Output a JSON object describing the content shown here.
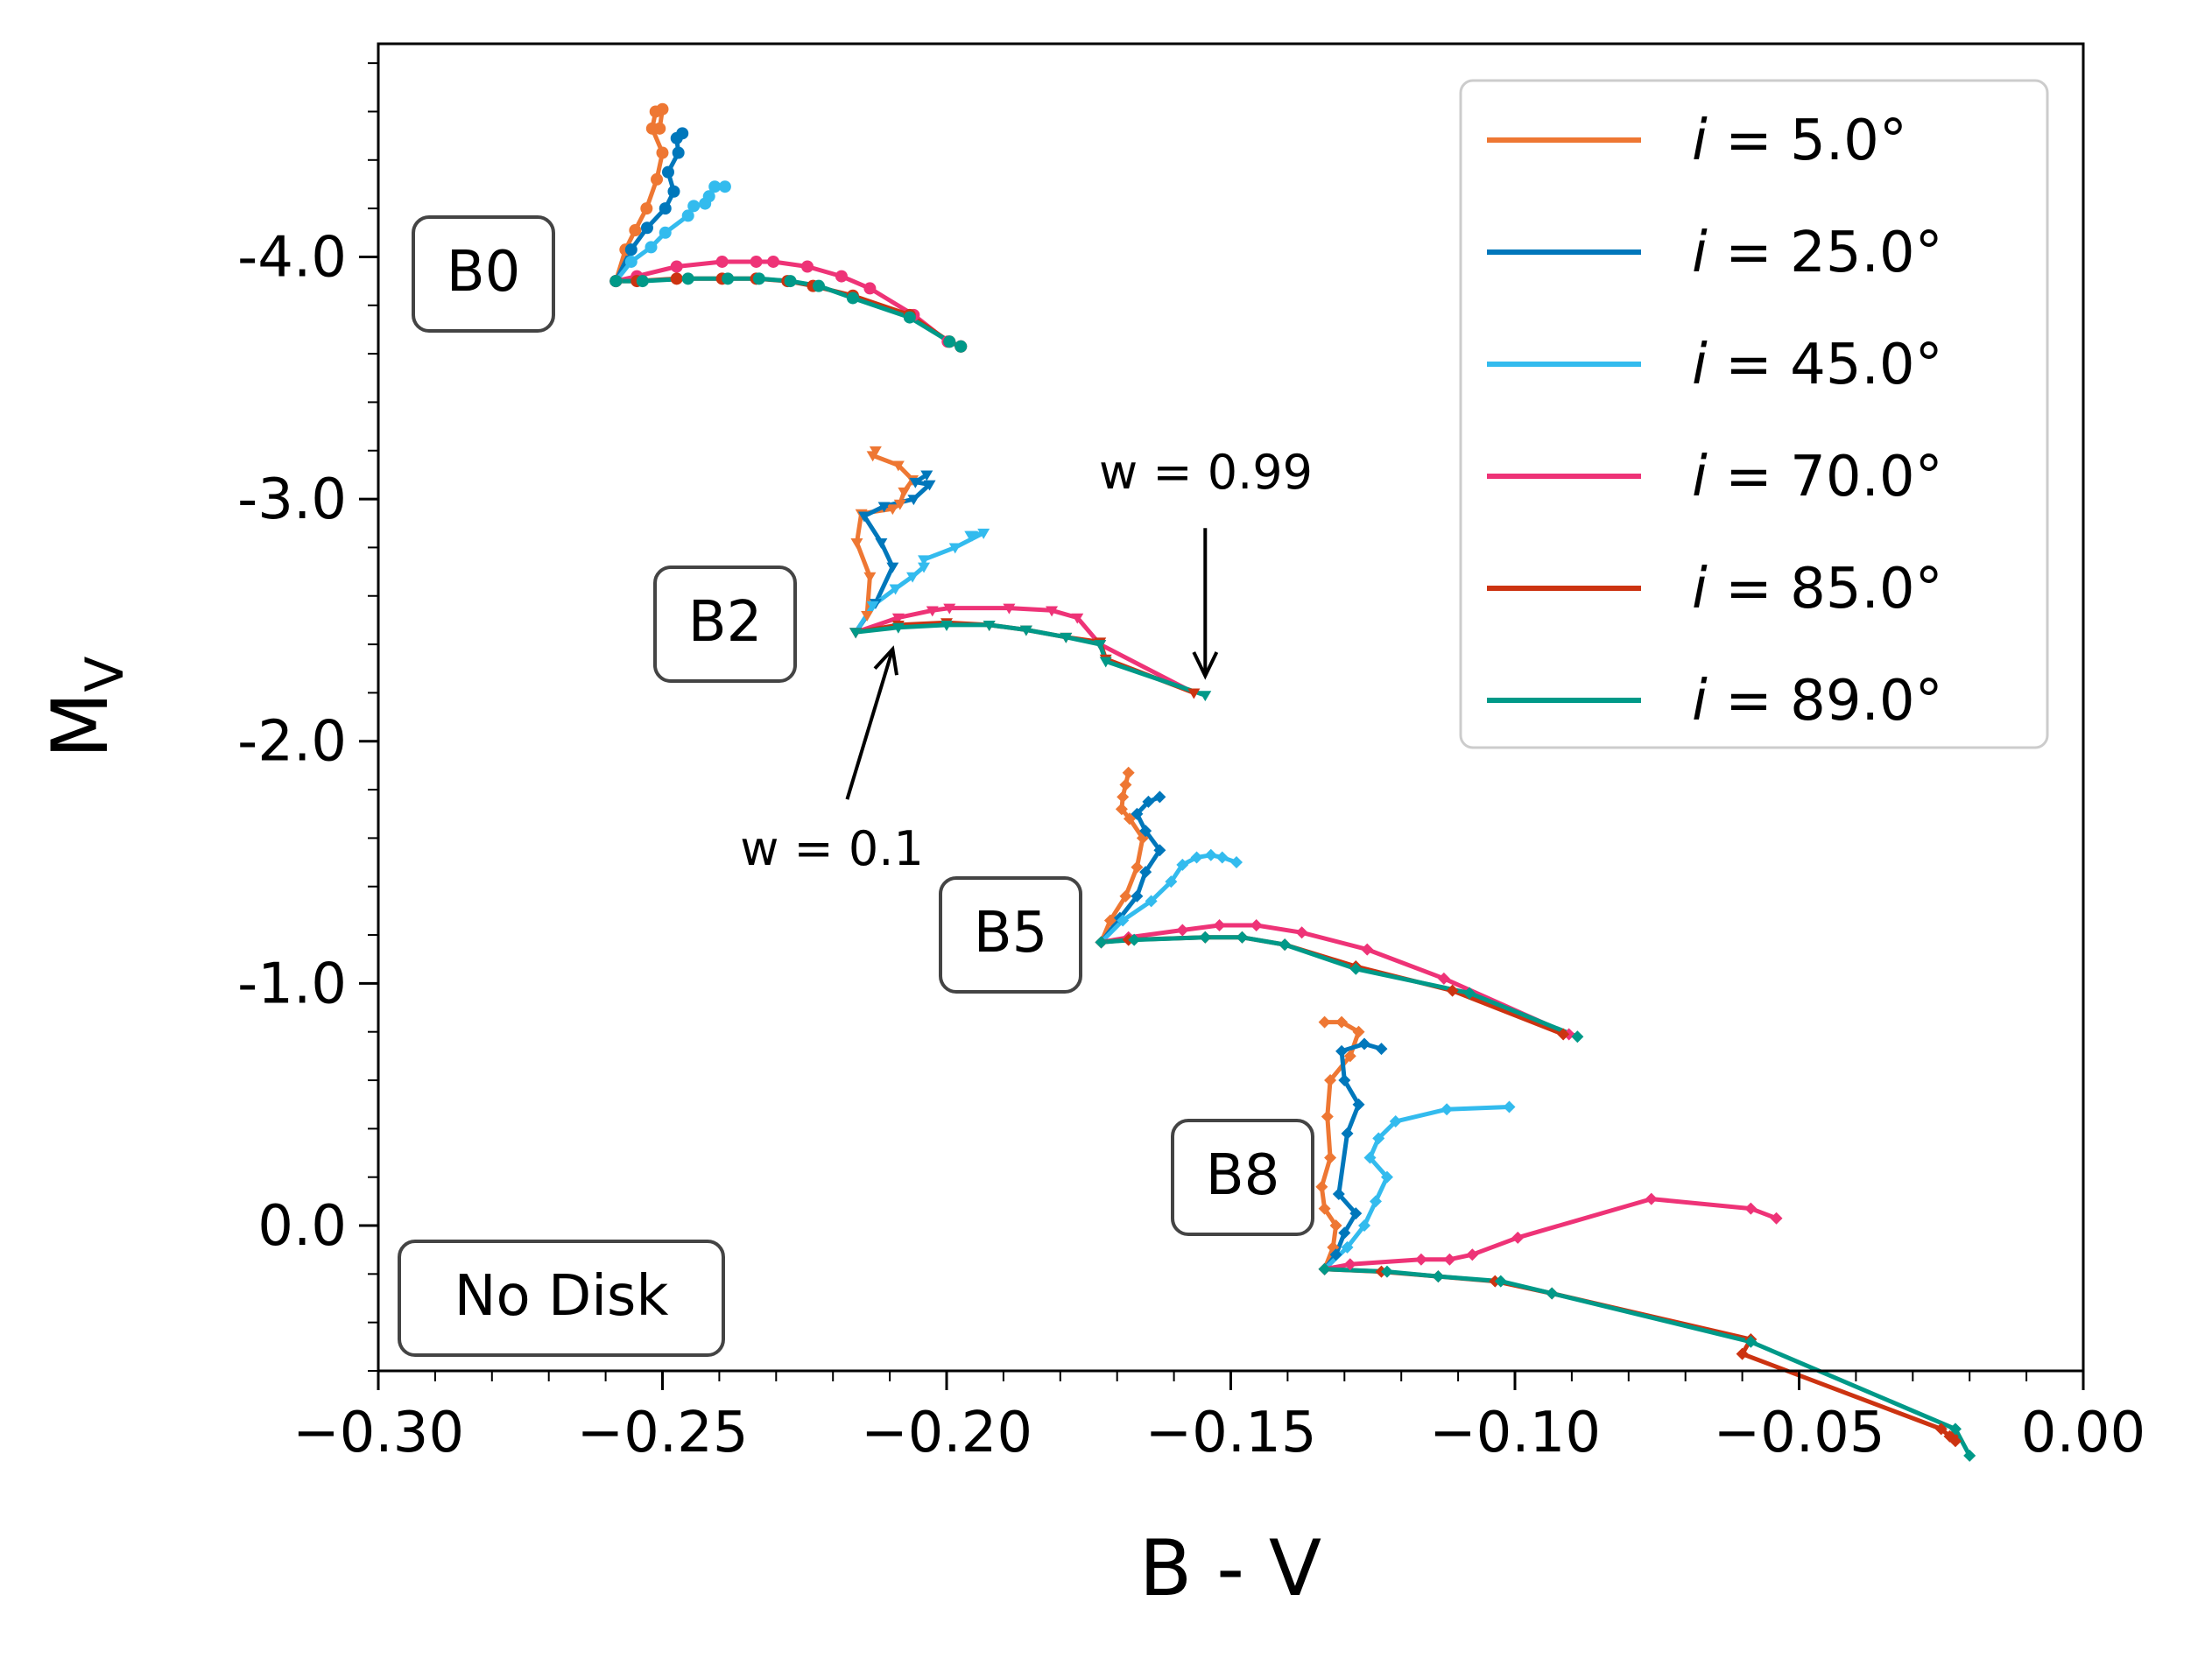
{
  "chart_data": {
    "type": "line",
    "title": "",
    "xlabel": "B - V",
    "ylabel_main": "M",
    "ylabel_sub": "V",
    "xlim": [
      -0.3,
      0.0
    ],
    "ylim": [
      0.6,
      -4.88
    ],
    "y_inverted": true,
    "xticks": [
      -0.3,
      -0.25,
      -0.2,
      -0.15,
      -0.1,
      -0.05,
      0.0
    ],
    "xtick_labels": [
      "−0.30",
      "−0.25",
      "−0.20",
      "−0.15",
      "−0.10",
      "−0.05",
      "0.00"
    ],
    "yticks": [
      -4.0,
      -3.0,
      -2.0,
      -1.0,
      0.0
    ],
    "ytick_labels": [
      "-4.0",
      "-3.0",
      "-2.0",
      "-1.0",
      "0.0"
    ],
    "legend_position": "top-right",
    "legend_prefix": "i",
    "series": [
      {
        "name": "5.0°",
        "color": "#EE7733"
      },
      {
        "name": "25.0°",
        "color": "#0077BB"
      },
      {
        "name": "45.0°",
        "color": "#33BBEE"
      },
      {
        "name": "70.0°",
        "color": "#EE3377"
      },
      {
        "name": "85.0°",
        "color": "#CC3311"
      },
      {
        "name": "89.0°",
        "color": "#009988"
      }
    ],
    "groups": [
      {
        "label": "B0",
        "marker": "circle",
        "tracks": [
          {
            "series": 0,
            "x": [
              -0.2582,
              -0.2565,
              -0.2548,
              -0.2528,
              -0.251,
              -0.25,
              -0.2518,
              -0.2512,
              -0.25,
              -0.2505
            ],
            "y": [
              -3.9,
              -4.03,
              -4.11,
              -4.2,
              -4.32,
              -4.43,
              -4.53,
              -4.6,
              -4.61,
              -4.53
            ]
          },
          {
            "series": 1,
            "x": [
              -0.2582,
              -0.2555,
              -0.2527,
              -0.2495,
              -0.248,
              -0.249,
              -0.2472,
              -0.2475,
              -0.2465
            ],
            "y": [
              -3.9,
              -4.03,
              -4.12,
              -4.2,
              -4.27,
              -4.35,
              -4.43,
              -4.49,
              -4.51
            ]
          },
          {
            "series": 2,
            "x": [
              -0.2582,
              -0.2555,
              -0.252,
              -0.2495,
              -0.2455,
              -0.2445,
              -0.2425,
              -0.2418,
              -0.2408,
              -0.239
            ],
            "y": [
              -3.9,
              -3.98,
              -4.04,
              -4.1,
              -4.17,
              -4.21,
              -4.22,
              -4.25,
              -4.29,
              -4.29
            ]
          },
          {
            "series": 3,
            "x": [
              -0.2582,
              -0.2545,
              -0.2475,
              -0.2395,
              -0.2335,
              -0.2305,
              -0.2245,
              -0.2185,
              -0.2135,
              -0.2058,
              -0.1998,
              -0.1975
            ],
            "y": [
              -3.9,
              -3.92,
              -3.96,
              -3.98,
              -3.98,
              -3.98,
              -3.96,
              -3.92,
              -3.87,
              -3.76,
              -3.65,
              -3.63
            ]
          },
          {
            "series": 4,
            "x": [
              -0.2582,
              -0.2545,
              -0.2475,
              -0.2395,
              -0.2335,
              -0.228,
              -0.2235,
              -0.2165,
              -0.2065,
              -0.1995,
              -0.1975
            ],
            "y": [
              -3.9,
              -3.9,
              -3.91,
              -3.91,
              -3.91,
              -3.9,
              -3.88,
              -3.84,
              -3.76,
              -3.65,
              -3.63
            ]
          },
          {
            "series": 5,
            "x": [
              -0.2582,
              -0.2535,
              -0.2455,
              -0.2385,
              -0.233,
              -0.2275,
              -0.2225,
              -0.2165,
              -0.2065,
              -0.1995,
              -0.1975
            ],
            "y": [
              -3.9,
              -3.9,
              -3.91,
              -3.91,
              -3.91,
              -3.9,
              -3.88,
              -3.83,
              -3.75,
              -3.65,
              -3.63
            ]
          }
        ]
      },
      {
        "label": "B2",
        "marker": "triangle",
        "tracks": [
          {
            "series": 0,
            "x": [
              -0.216,
              -0.214,
              -0.2135,
              -0.2158,
              -0.215,
              -0.2095,
              -0.2082,
              -0.2075,
              -0.206,
              -0.2085,
              -0.213,
              -0.2125
            ],
            "y": [
              -2.45,
              -2.52,
              -2.68,
              -2.82,
              -2.94,
              -2.96,
              -2.98,
              -3.03,
              -3.08,
              -3.14,
              -3.18,
              -3.2
            ]
          },
          {
            "series": 1,
            "x": [
              -0.216,
              -0.2125,
              -0.2095,
              -0.2115,
              -0.2145,
              -0.211,
              -0.2058,
              -0.203,
              -0.2055,
              -0.2035
            ],
            "y": [
              -2.45,
              -2.57,
              -2.72,
              -2.82,
              -2.93,
              -2.97,
              -3.0,
              -3.06,
              -3.07,
              -3.1
            ]
          },
          {
            "series": 2,
            "x": [
              -0.216,
              -0.213,
              -0.209,
              -0.206,
              -0.204,
              -0.204,
              -0.1985,
              -0.1935,
              -0.1955,
              -0.1958
            ],
            "y": [
              -2.45,
              -2.56,
              -2.63,
              -2.68,
              -2.72,
              -2.75,
              -2.8,
              -2.86,
              -2.85,
              -2.85
            ]
          },
          {
            "series": 3,
            "x": [
              -0.216,
              -0.2085,
              -0.2025,
              -0.1995,
              -0.189,
              -0.1815,
              -0.177,
              -0.173,
              -0.1565
            ],
            "y": [
              -2.45,
              -2.51,
              -2.54,
              -2.55,
              -2.55,
              -2.54,
              -2.51,
              -2.4,
              -2.2
            ]
          },
          {
            "series": 4,
            "x": [
              -0.216,
              -0.2085,
              -0.2,
              -0.1925,
              -0.186,
              -0.179,
              -0.173,
              -0.172,
              -0.1565
            ],
            "y": [
              -2.45,
              -2.48,
              -2.49,
              -2.48,
              -2.46,
              -2.43,
              -2.41,
              -2.34,
              -2.2
            ]
          },
          {
            "series": 5,
            "x": [
              -0.216,
              -0.2085,
              -0.2,
              -0.1925,
              -0.186,
              -0.179,
              -0.173,
              -0.172,
              -0.1545
            ],
            "y": [
              -2.45,
              -2.47,
              -2.48,
              -2.48,
              -2.46,
              -2.43,
              -2.4,
              -2.33,
              -2.19
            ]
          }
        ]
      },
      {
        "label": "B5",
        "marker": "diamond",
        "tracks": [
          {
            "series": 0,
            "x": [
              -0.1728,
              -0.1712,
              -0.1685,
              -0.1665,
              -0.1655,
              -0.1678,
              -0.1692,
              -0.169,
              -0.1685,
              -0.168
            ],
            "y": [
              -1.17,
              -1.26,
              -1.36,
              -1.48,
              -1.6,
              -1.68,
              -1.72,
              -1.77,
              -1.82,
              -1.87
            ]
          },
          {
            "series": 1,
            "x": [
              -0.1728,
              -0.1695,
              -0.1665,
              -0.165,
              -0.1625,
              -0.165,
              -0.1665,
              -0.1645,
              -0.1625
            ],
            "y": [
              -1.17,
              -1.27,
              -1.36,
              -1.46,
              -1.55,
              -1.63,
              -1.7,
              -1.75,
              -1.77
            ]
          },
          {
            "series": 2,
            "x": [
              -0.1728,
              -0.169,
              -0.164,
              -0.1605,
              -0.1585,
              -0.156,
              -0.1535,
              -0.1515,
              -0.149
            ],
            "y": [
              -1.17,
              -1.26,
              -1.34,
              -1.42,
              -1.49,
              -1.52,
              -1.53,
              -1.52,
              -1.5
            ]
          },
          {
            "series": 3,
            "x": [
              -0.1728,
              -0.168,
              -0.1585,
              -0.152,
              -0.1455,
              -0.1375,
              -0.126,
              -0.1125,
              -0.0905
            ],
            "y": [
              -1.17,
              -1.19,
              -1.22,
              -1.24,
              -1.24,
              -1.21,
              -1.14,
              -1.02,
              -0.79
            ]
          },
          {
            "series": 4,
            "x": [
              -0.1728,
              -0.168,
              -0.1545,
              -0.148,
              -0.1405,
              -0.128,
              -0.111,
              -0.0915
            ],
            "y": [
              -1.17,
              -1.18,
              -1.19,
              -1.19,
              -1.16,
              -1.07,
              -0.97,
              -0.79
            ]
          },
          {
            "series": 5,
            "x": [
              -0.1728,
              -0.167,
              -0.1545,
              -0.148,
              -0.1405,
              -0.128,
              -0.108,
              -0.089
            ],
            "y": [
              -1.17,
              -1.18,
              -1.19,
              -1.19,
              -1.16,
              -1.06,
              -0.96,
              -0.78
            ]
          }
        ]
      },
      {
        "label": "B8",
        "marker": "diamond",
        "tracks": [
          {
            "series": 0,
            "x": [
              -0.1335,
              -0.132,
              -0.1315,
              -0.1335,
              -0.134,
              -0.1325,
              -0.133,
              -0.1325,
              -0.129,
              -0.1275,
              -0.1305,
              -0.1335
            ],
            "y": [
              0.18,
              0.09,
              0.0,
              -0.07,
              -0.16,
              -0.28,
              -0.45,
              -0.6,
              -0.7,
              -0.8,
              -0.84,
              -0.84
            ]
          },
          {
            "series": 1,
            "x": [
              -0.1335,
              -0.1315,
              -0.13,
              -0.128,
              -0.131,
              -0.1295,
              -0.1275,
              -0.13,
              -0.1305,
              -0.1265,
              -0.1235
            ],
            "y": [
              0.18,
              0.12,
              0.03,
              -0.05,
              -0.13,
              -0.38,
              -0.5,
              -0.6,
              -0.72,
              -0.75,
              -0.73
            ]
          },
          {
            "series": 2,
            "x": [
              -0.1335,
              -0.1295,
              -0.1265,
              -0.1245,
              -0.1225,
              -0.1255,
              -0.124,
              -0.121,
              -0.112,
              -0.101
            ],
            "y": [
              0.18,
              0.09,
              0.0,
              -0.1,
              -0.2,
              -0.28,
              -0.36,
              -0.43,
              -0.48,
              -0.49
            ]
          },
          {
            "series": 3,
            "x": [
              -0.1335,
              -0.129,
              -0.1165,
              -0.1115,
              -0.1075,
              -0.0995,
              -0.076,
              -0.0585,
              -0.054
            ],
            "y": [
              0.18,
              0.16,
              0.14,
              0.14,
              0.12,
              0.05,
              -0.11,
              -0.07,
              -0.03
            ]
          },
          {
            "series": 4,
            "x": [
              -0.1335,
              -0.1235,
              -0.1135,
              -0.1035,
              -0.0935,
              -0.0585,
              -0.06,
              -0.025,
              -0.0235,
              -0.023,
              -0.0225
            ],
            "y": [
              0.18,
              0.19,
              0.21,
              0.23,
              0.28,
              0.47,
              0.53,
              0.84,
              0.87,
              0.87,
              0.89
            ]
          },
          {
            "series": 5,
            "x": [
              -0.1335,
              -0.1225,
              -0.1135,
              -0.1025,
              -0.0935,
              -0.0585,
              -0.0225,
              -0.02
            ],
            "y": [
              0.18,
              0.19,
              0.21,
              0.23,
              0.28,
              0.48,
              0.84,
              0.95
            ]
          }
        ]
      }
    ],
    "annotations": [
      {
        "text": "w = 0.99",
        "arrow_from": [
          -0.1545,
          -2.88
        ],
        "arrow_to": [
          -0.1545,
          -2.27
        ]
      },
      {
        "text": "w = 0.1",
        "arrow_from": [
          -0.2175,
          -1.76
        ],
        "arrow_to": [
          -0.2095,
          -2.38
        ]
      }
    ],
    "corner_label": "No Disk"
  }
}
